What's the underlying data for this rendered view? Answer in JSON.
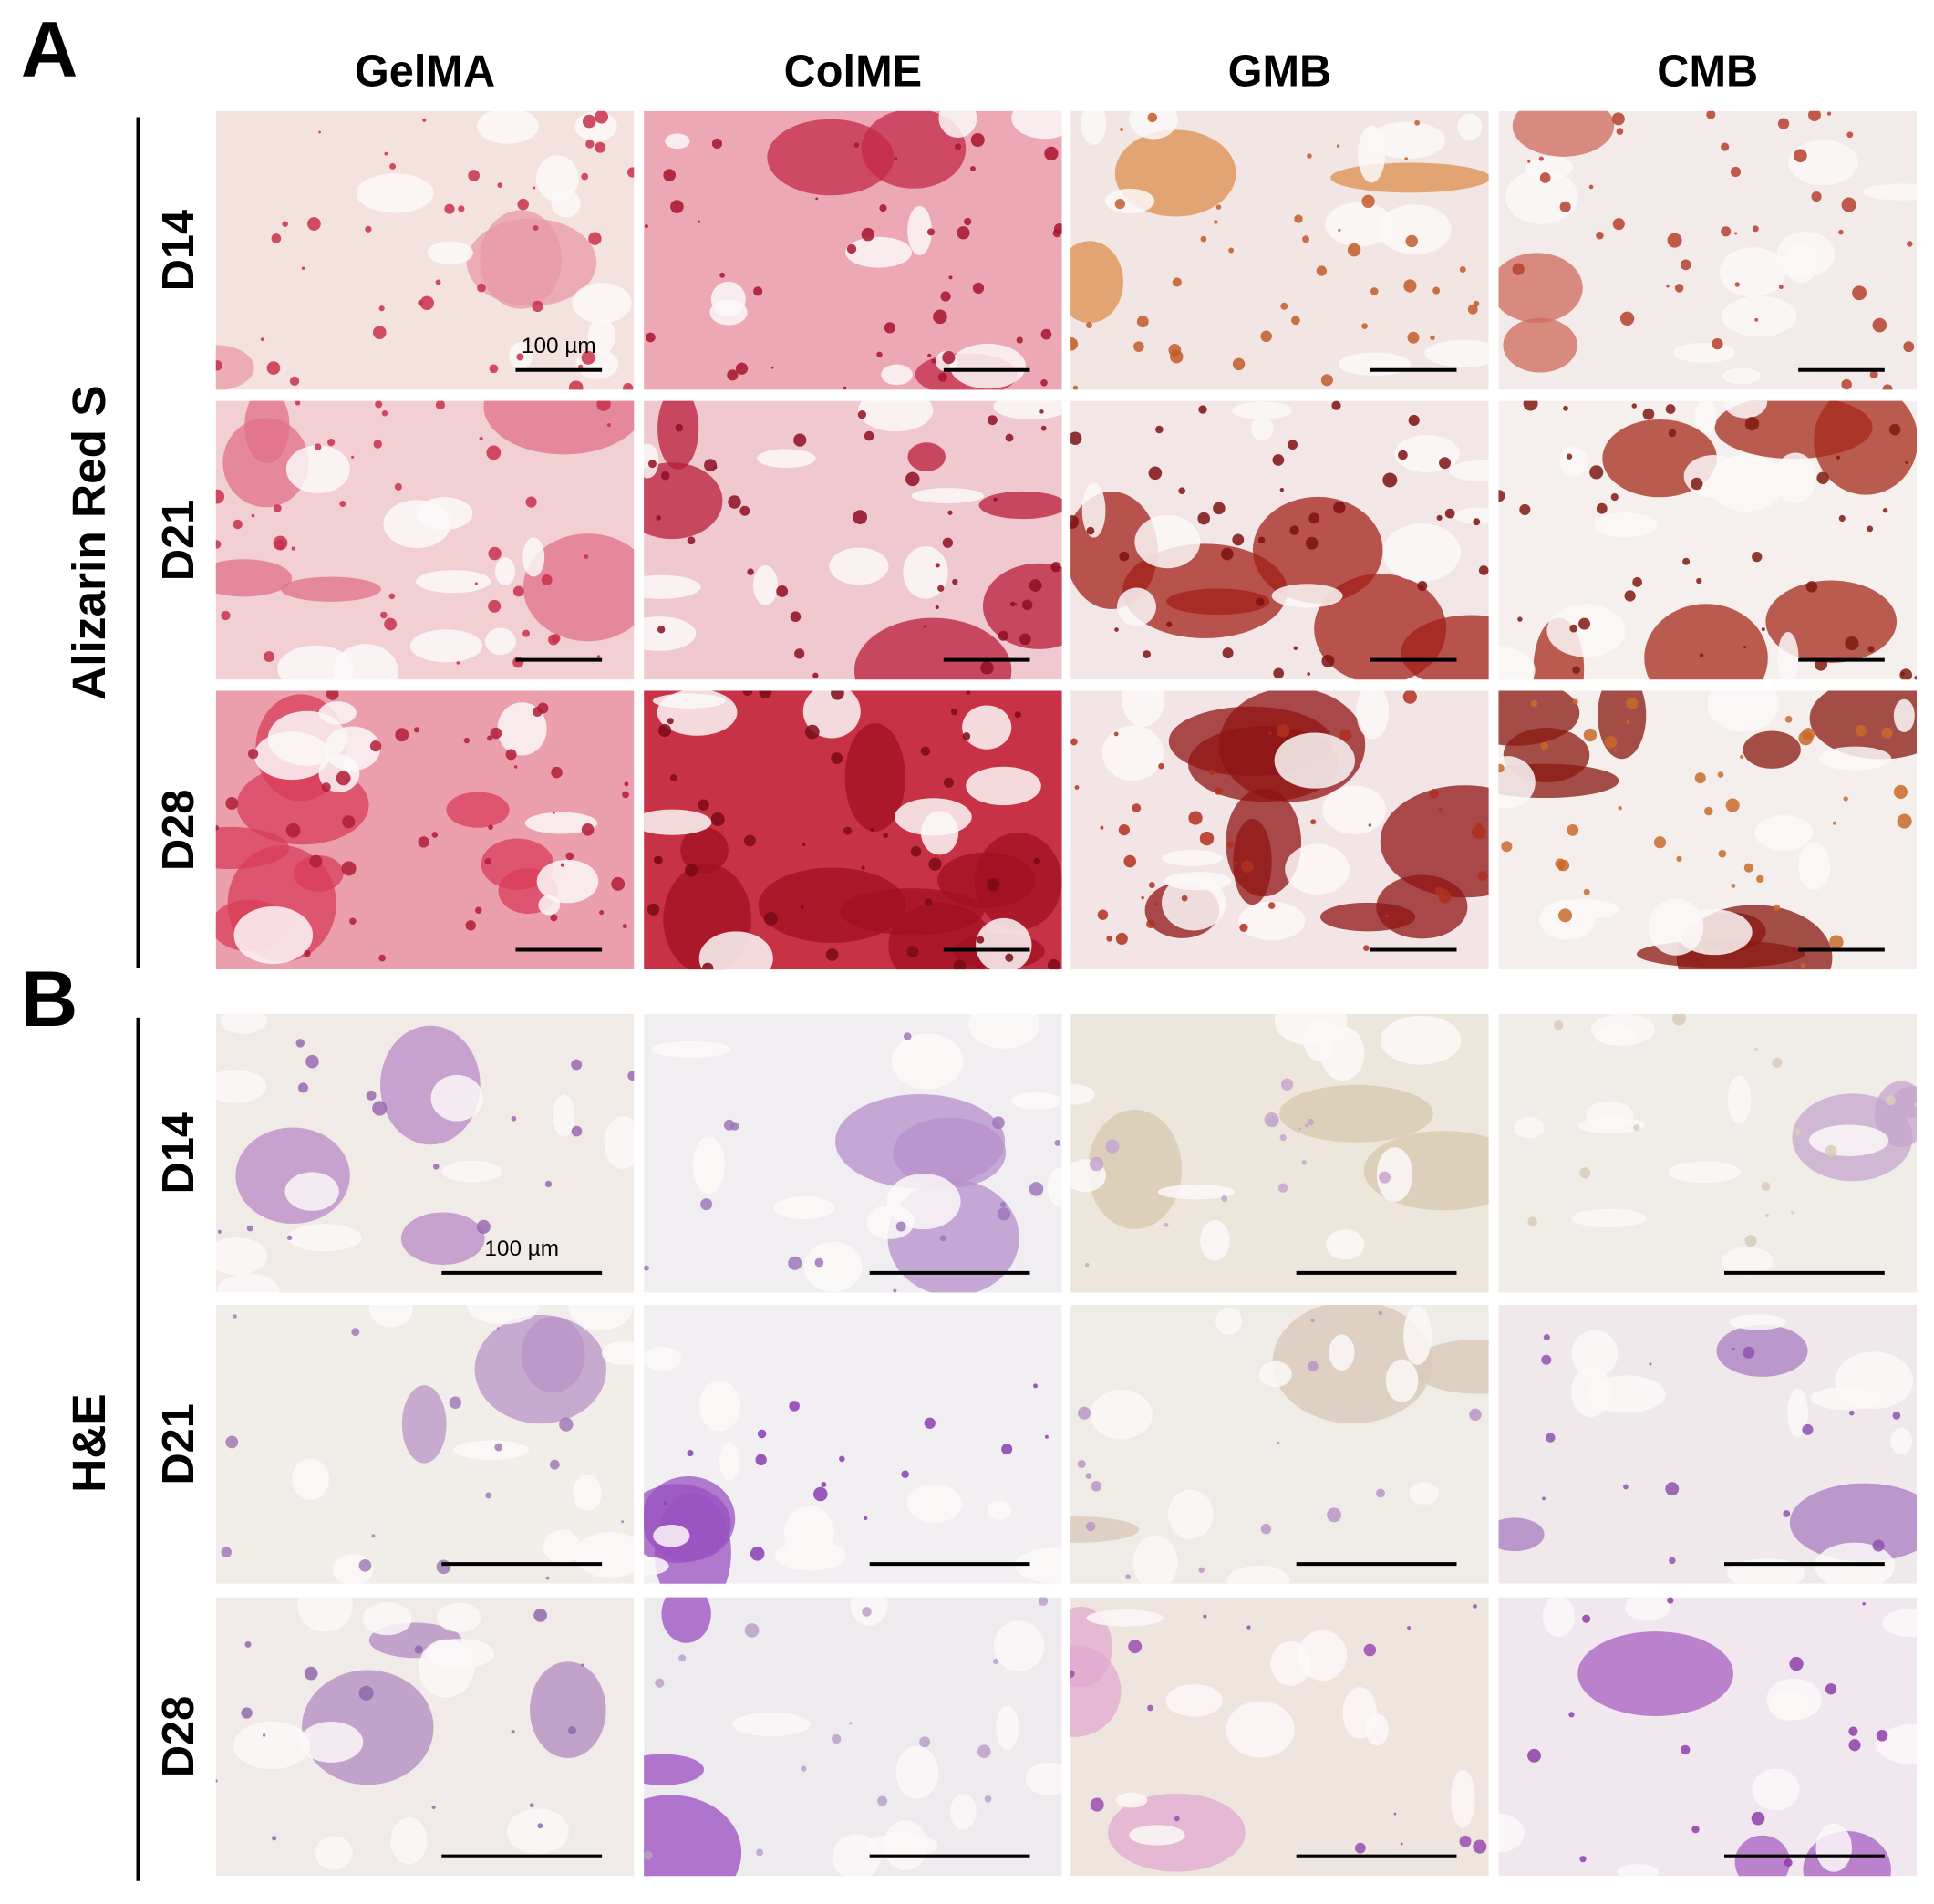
{
  "columns": [
    "GelMA",
    "ColME",
    "GMB",
    "CMB"
  ],
  "panels": [
    {
      "label": "A",
      "stain": "Alizarin Red S",
      "rows": [
        "D14",
        "D21",
        "D28"
      ],
      "scale_bar": "100 µm"
    },
    {
      "label": "B",
      "stain": "H&E",
      "rows": [
        "D14",
        "D21",
        "D28"
      ],
      "scale_bar": "100 µm"
    }
  ]
}
